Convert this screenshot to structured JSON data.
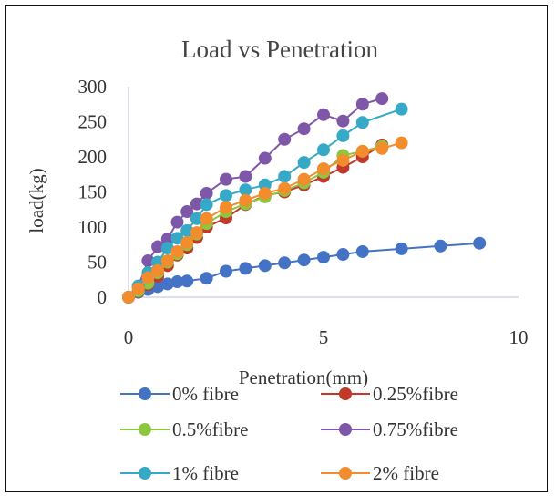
{
  "chart_data": {
    "type": "scatter",
    "title": "Load vs Penetration",
    "xlabel": "Penetration(mm)",
    "ylabel": "load(kg)",
    "xlim": [
      0,
      10
    ],
    "ylim": [
      0,
      300
    ],
    "x_ticks": [
      "0",
      "5",
      "10"
    ],
    "y_ticks": [
      "0",
      "50",
      "100",
      "150",
      "200",
      "250",
      "300"
    ],
    "grid": false,
    "legend_position": "bottom",
    "series": [
      {
        "name": "0% fibre",
        "color": "#4472C4",
        "x": [
          0,
          0.25,
          0.5,
          0.75,
          1,
          1.25,
          1.5,
          2,
          2.5,
          3,
          3.5,
          4,
          4.5,
          5,
          5.5,
          6,
          7,
          8,
          9
        ],
        "y": [
          0,
          7,
          11,
          15,
          19,
          22,
          23,
          27,
          37,
          41,
          45,
          49,
          53,
          57,
          61,
          65,
          69,
          73,
          77
        ]
      },
      {
        "name": "0.25%fibre",
        "color": "#C0392B",
        "x": [
          0,
          0.25,
          0.5,
          0.75,
          1,
          1.25,
          1.5,
          1.75,
          2,
          2.5,
          3,
          3.5,
          4,
          4.5,
          5,
          5.5,
          6,
          6.5
        ],
        "y": [
          0,
          8,
          18,
          30,
          45,
          60,
          70,
          85,
          100,
          113,
          132,
          145,
          150,
          160,
          172,
          185,
          200,
          217
        ]
      },
      {
        "name": "0.5%fibre",
        "color": "#8DC63F",
        "x": [
          0,
          0.25,
          0.5,
          0.75,
          1,
          1.25,
          1.5,
          1.75,
          2,
          2.5,
          3,
          3.5,
          4,
          4.5,
          5,
          5.5,
          6,
          6.5
        ],
        "y": [
          0,
          9,
          20,
          35,
          50,
          62,
          75,
          90,
          105,
          122,
          133,
          143,
          152,
          163,
          178,
          202,
          208,
          215
        ]
      },
      {
        "name": "0.75%fibre",
        "color": "#7E57A9",
        "x": [
          0,
          0.25,
          0.5,
          0.75,
          1,
          1.25,
          1.5,
          1.75,
          2,
          2.5,
          3,
          3.5,
          4,
          4.5,
          5,
          5.5,
          6,
          6.5
        ],
        "y": [
          0,
          15,
          52,
          72,
          83,
          107,
          122,
          133,
          148,
          168,
          172,
          198,
          225,
          240,
          260,
          251,
          275,
          283
        ]
      },
      {
        "name": "1% fibre",
        "color": "#36A9C6",
        "x": [
          0,
          0.25,
          0.5,
          0.75,
          1,
          1.25,
          1.5,
          1.75,
          2,
          2.5,
          3,
          3.5,
          4,
          4.5,
          5,
          5.5,
          6,
          7
        ],
        "y": [
          0,
          16,
          35,
          50,
          70,
          84,
          95,
          112,
          132,
          145,
          153,
          160,
          172,
          192,
          210,
          230,
          249,
          268
        ]
      },
      {
        "name": "2% fibre",
        "color": "#F28C2C",
        "x": [
          0,
          0.25,
          0.5,
          0.75,
          1,
          1.25,
          1.5,
          1.75,
          2,
          2.5,
          3,
          3.5,
          4,
          4.5,
          5,
          5.5,
          6,
          6.5,
          7
        ],
        "y": [
          0,
          12,
          28,
          38,
          52,
          65,
          78,
          92,
          112,
          128,
          138,
          148,
          155,
          168,
          183,
          195,
          208,
          212,
          220
        ]
      }
    ]
  }
}
